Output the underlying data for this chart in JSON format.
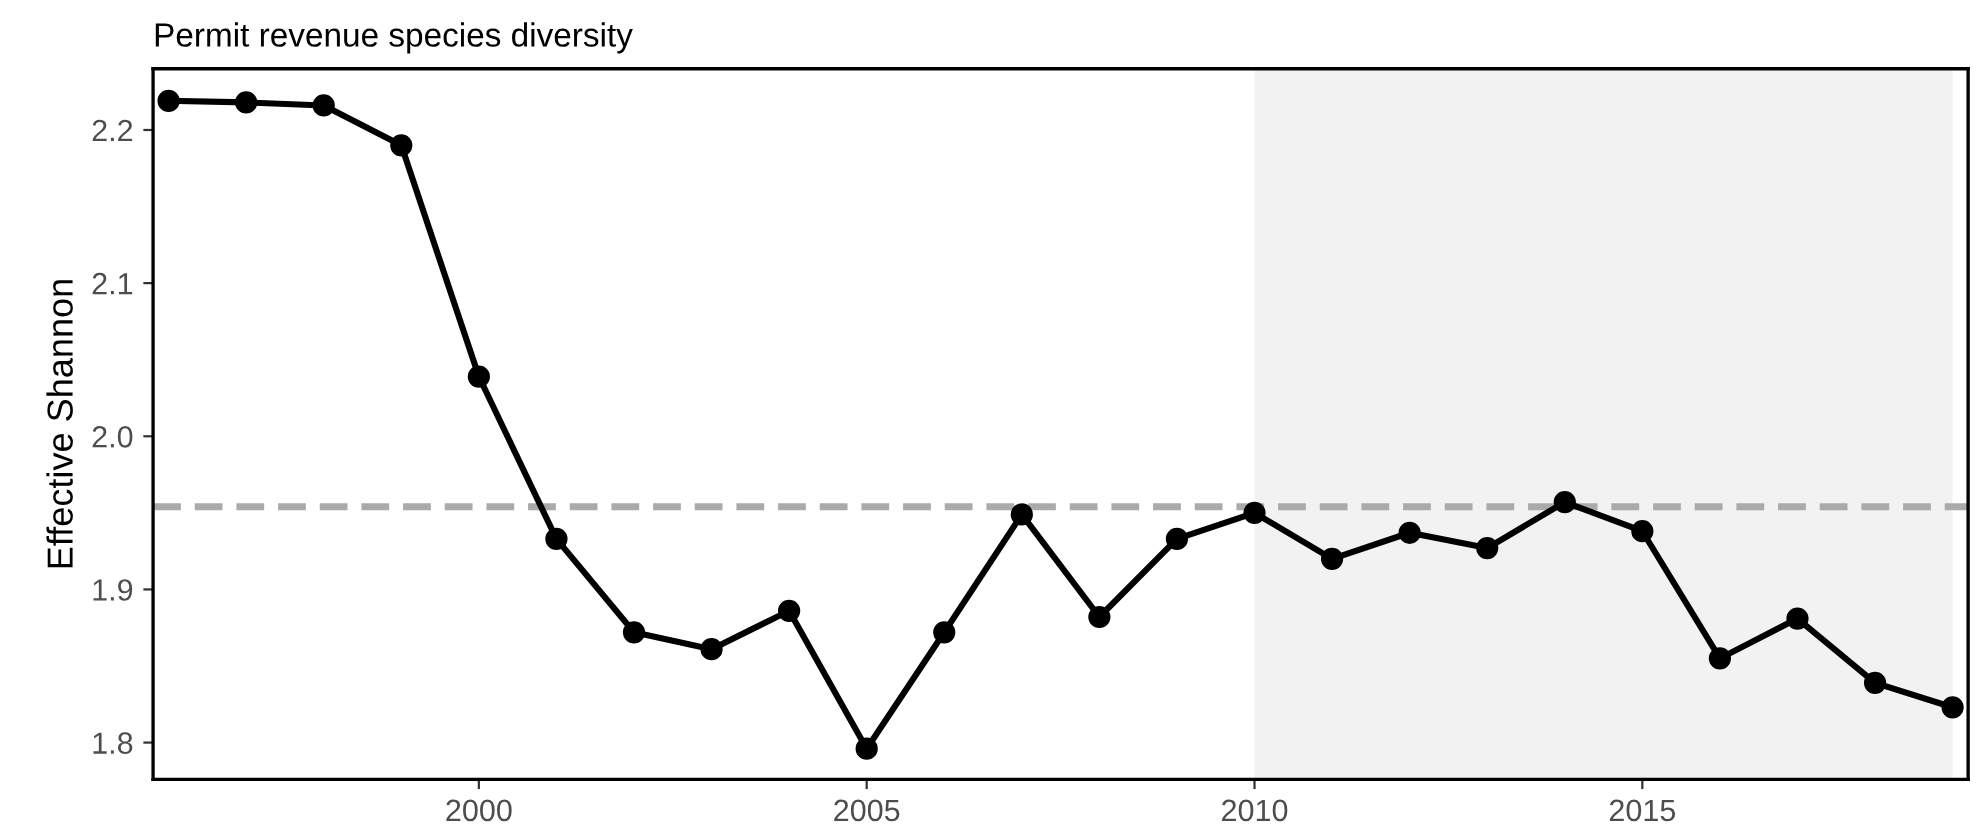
{
  "chart_data": {
    "type": "line",
    "title": "Permit revenue species diversity",
    "ylabel": "Effective Shannon",
    "x": [
      1996,
      1997,
      1998,
      1999,
      2000,
      2001,
      2002,
      2003,
      2004,
      2005,
      2006,
      2007,
      2008,
      2009,
      2010,
      2011,
      2012,
      2013,
      2014,
      2015,
      2016,
      2017,
      2018,
      2019
    ],
    "series": [
      {
        "color": "#000000",
        "values": [
          2.219,
          2.218,
          2.216,
          2.19,
          2.039,
          1.933,
          1.872,
          1.861,
          1.886,
          1.796,
          1.872,
          1.949,
          1.882,
          1.933,
          1.95,
          1.92,
          1.937,
          1.927,
          1.957,
          1.938,
          1.855,
          1.881,
          1.839,
          1.823
        ]
      }
    ],
    "xlim": [
      1995.8,
      2019.2
    ],
    "xticks": [
      2000,
      2005,
      2010,
      2015
    ],
    "ylim": [
      1.776,
      2.24
    ],
    "yticks": [
      1.8,
      1.9,
      {
        "value": 2.0,
        "label": "2.0"
      },
      2.1,
      2.2
    ],
    "ref_lines": [
      {
        "axis": "y",
        "value": 1.954,
        "color": "#aaaaaa",
        "line_style": "dashed"
      }
    ],
    "bands": [
      {
        "axis": "x",
        "from": 2010,
        "to": 2019,
        "color": "#f2f2f2"
      }
    ],
    "marker": "circle",
    "line_style": "solid",
    "grid": false,
    "legend": false
  }
}
